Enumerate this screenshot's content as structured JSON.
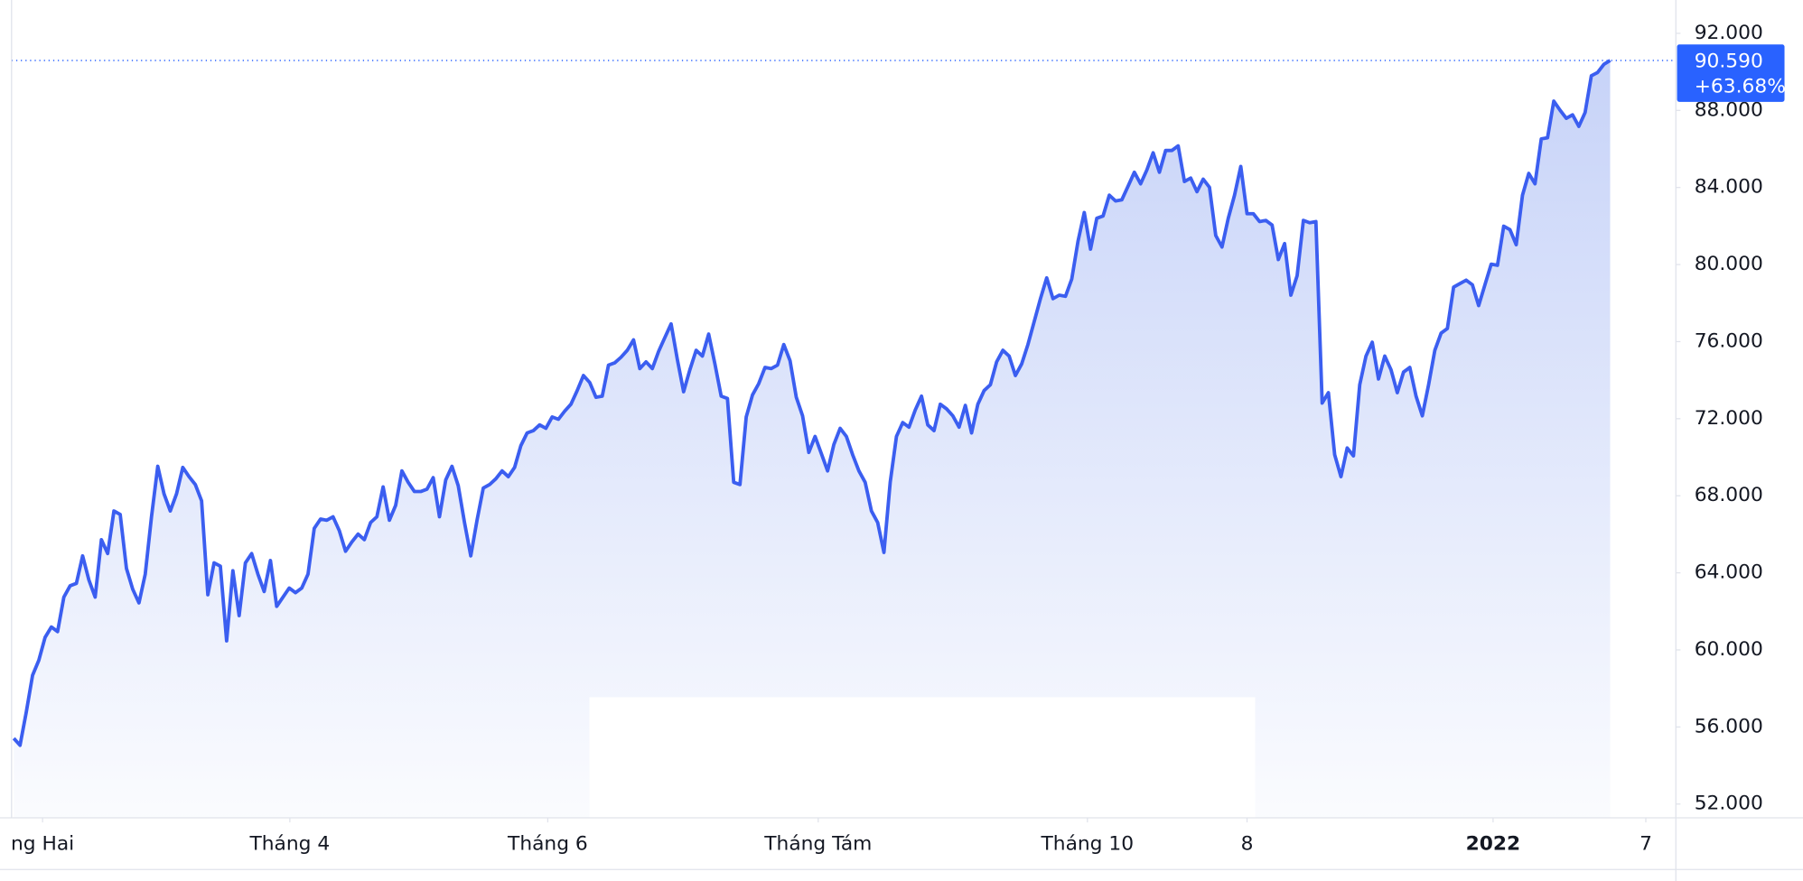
{
  "chart_data": {
    "type": "area-line",
    "color": "#3b5ef0",
    "x": [
      0,
      1,
      2,
      3,
      4,
      5,
      6,
      7,
      8,
      9,
      10,
      11,
      12,
      13,
      14,
      15,
      16,
      17,
      18,
      19,
      20,
      21,
      22,
      23,
      24,
      25,
      26,
      27,
      28,
      29,
      30,
      31,
      32,
      33,
      34,
      35,
      36,
      37,
      38,
      39,
      40,
      41,
      42,
      43,
      44,
      45,
      46,
      47,
      48,
      49,
      50,
      51,
      52,
      53,
      54,
      55,
      56,
      57,
      58,
      59,
      60,
      61,
      62,
      63,
      64,
      65,
      66,
      67,
      68,
      69,
      70,
      71,
      72,
      73,
      74,
      75,
      76,
      77,
      78,
      79,
      80,
      81,
      82,
      83,
      84,
      85,
      86,
      87,
      88,
      89,
      90,
      91,
      92,
      93,
      94,
      95,
      96,
      97,
      98,
      99,
      100,
      101,
      102,
      103,
      104,
      105,
      106,
      107,
      108,
      109,
      110,
      111,
      112,
      113,
      114,
      115,
      116,
      117,
      118,
      119,
      120,
      121,
      122,
      123,
      124,
      125,
      126,
      127,
      128,
      129,
      130,
      131,
      132,
      133,
      134,
      135,
      136,
      137,
      138,
      139,
      140,
      141,
      142,
      143,
      144,
      145,
      146,
      147,
      148,
      149,
      150,
      151,
      152,
      153,
      154,
      155,
      156,
      157,
      158,
      159,
      160,
      161,
      162,
      163,
      164,
      165,
      166,
      167,
      168,
      169,
      170,
      171,
      172,
      173,
      174,
      175,
      176,
      177,
      178,
      179,
      180,
      181,
      182,
      183,
      184,
      185,
      186,
      187,
      188,
      189,
      190,
      191,
      192,
      193,
      194,
      195,
      196,
      197,
      198,
      199,
      200,
      201,
      202,
      203,
      204,
      205,
      206,
      207,
      208,
      209,
      210,
      211,
      212,
      213,
      214,
      215,
      216,
      217,
      218,
      219,
      220,
      221,
      222,
      223,
      224,
      225,
      226,
      227,
      228,
      229,
      230,
      231,
      232,
      233,
      234,
      235,
      236,
      237,
      238,
      239,
      240,
      241,
      242,
      243,
      244,
      245,
      246,
      247,
      248,
      249,
      250,
      251,
      252,
      253,
      254,
      255
    ],
    "values": [
      55410,
      55050,
      56780,
      58680,
      59460,
      60650,
      61190,
      60950,
      62740,
      63330,
      63450,
      64880,
      63630,
      62740,
      65720,
      65000,
      67210,
      67030,
      64230,
      63150,
      62440,
      63930,
      66910,
      69530,
      68100,
      67210,
      68100,
      69470,
      68990,
      68580,
      67740,
      62860,
      64520,
      64350,
      60470,
      64110,
      61780,
      64520,
      65000,
      63930,
      63030,
      64640,
      62260,
      62740,
      63210,
      62970,
      63210,
      63930,
      66310,
      66790,
      66730,
      66910,
      66190,
      65120,
      65600,
      66010,
      65720,
      66610,
      66910,
      68460,
      66730,
      67500,
      69290,
      68700,
      68220,
      68220,
      68340,
      68940,
      66910,
      68820,
      69530,
      68520,
      66610,
      64880,
      66730,
      68400,
      68580,
      68880,
      69290,
      68990,
      69470,
      70600,
      71260,
      71380,
      71680,
      71500,
      72090,
      71970,
      72390,
      72750,
      73460,
      74240,
      73880,
      73110,
      73170,
      74780,
      74900,
      75190,
      75550,
      76090,
      74600,
      74950,
      74600,
      75490,
      76210,
      76920,
      75070,
      73400,
      74540,
      75550,
      75250,
      76390,
      74840,
      73170,
      73050,
      68700,
      68580,
      72090,
      73230,
      73820,
      74660,
      74600,
      74780,
      75850,
      75010,
      73110,
      72150,
      70250,
      71080,
      70190,
      69290,
      70660,
      71500,
      71080,
      70130,
      69290,
      68700,
      67210,
      66610,
      65060,
      68700,
      71080,
      71800,
      71560,
      72450,
      73170,
      71680,
      71380,
      72750,
      72510,
      72150,
      71560,
      72690,
      71260,
      72750,
      73460,
      73760,
      74950,
      75550,
      75250,
      74240,
      74840,
      75850,
      77040,
      78230,
      79310,
      78230,
      78410,
      78350,
      79250,
      81210,
      82700,
      80800,
      82400,
      82520,
      83600,
      83300,
      83360,
      84070,
      84790,
      84190,
      84910,
      85800,
      84790,
      85920,
      85920,
      86160,
      84310,
      84490,
      83780,
      84430,
      84010,
      81510,
      80910,
      82400,
      83600,
      85090,
      82640,
      82640,
      82230,
      82290,
      82050,
      80260,
      81090,
      78410,
      79420,
      82290,
      82170,
      82230,
      72810,
      73350,
      70130,
      68990,
      70480,
      70070,
      73760,
      75250,
      75970,
      74060,
      75250,
      74540,
      73350,
      74420,
      74660,
      73170,
      72150,
      73760,
      75550,
      76440,
      76680,
      78830,
      79010,
      79190,
      78950,
      77870,
      78950,
      80020,
      79960,
      81990,
      81810,
      81030,
      83600,
      84730,
      84190,
      86520,
      86580,
      88480,
      88010,
      87590,
      87770,
      87170,
      87890,
      89800,
      89970,
      90390,
      90590
    ],
    "xlim": [
      -2.2,
      265.5
    ],
    "xticks": [
      {
        "value": 4.6,
        "label": "ng Hai"
      },
      {
        "value": 44.1,
        "label": "Tháng 4"
      },
      {
        "value": 85.3,
        "label": "Tháng 6"
      },
      {
        "value": 128.5,
        "label": "Tháng Tám"
      },
      {
        "value": 171.5,
        "label": "Tháng 10"
      },
      {
        "value": 197,
        "label": "8"
      },
      {
        "value": 236.3,
        "label": "2022",
        "bold": true
      },
      {
        "value": 260.7,
        "label": "7"
      }
    ],
    "ylim": [
      51285,
      93730
    ],
    "yticks": [
      {
        "value": 52000,
        "label": "52.000"
      },
      {
        "value": 56000,
        "label": "56.000"
      },
      {
        "value": 60000,
        "label": "60.000"
      },
      {
        "value": 64000,
        "label": "64.000"
      },
      {
        "value": 68000,
        "label": "68.000"
      },
      {
        "value": 72000,
        "label": "72.000"
      },
      {
        "value": 76000,
        "label": "76.000"
      },
      {
        "value": 80000,
        "label": "80.000"
      },
      {
        "value": 84000,
        "label": "84.000"
      },
      {
        "value": 88000,
        "label": "88.000"
      },
      {
        "value": 92000,
        "label": "92.000"
      }
    ],
    "last_value": {
      "value": 90590,
      "label": "90.590"
    },
    "change": {
      "value": 63.68,
      "label": "+63.68%"
    }
  }
}
